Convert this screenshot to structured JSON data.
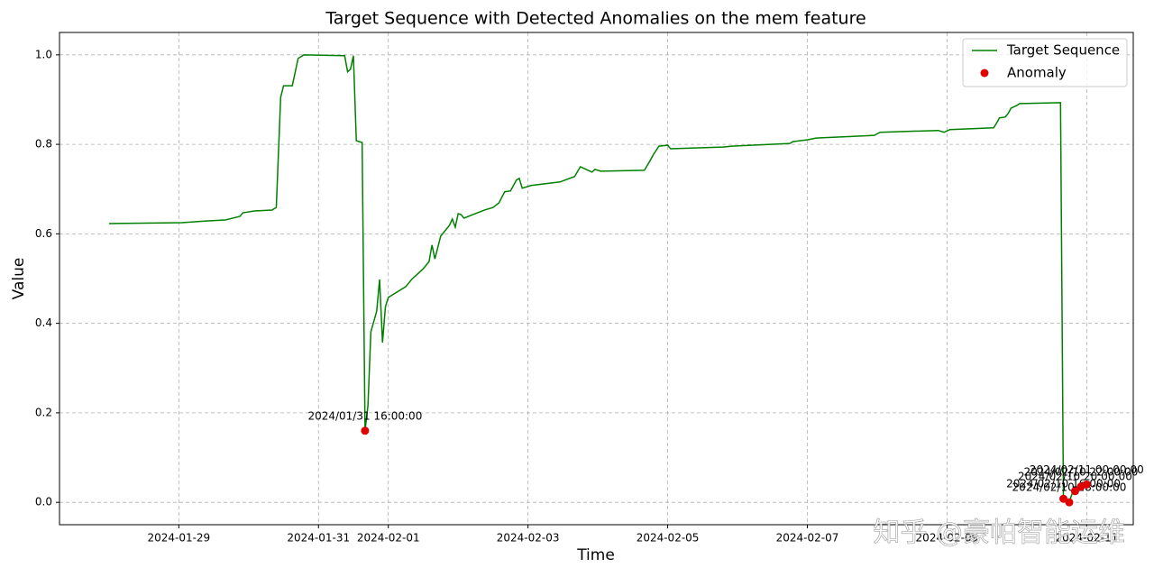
{
  "chart_data": {
    "type": "line",
    "title": "Target Sequence with Detected Anomalies on the mem feature",
    "xlabel": "Time",
    "ylabel": "Value",
    "xlim": [
      "2024-01-27 07:00",
      "2024-02-11 16:00"
    ],
    "xticks": [
      "2024-01-29",
      "2024-01-31",
      "2024-02-01",
      "2024-02-03",
      "2024-02-05",
      "2024-02-07",
      "2024-02-09",
      "2024-02-11"
    ],
    "ylim": [
      -0.05,
      1.05
    ],
    "yticks": [
      {
        "value": 0,
        "label": "0.0"
      },
      0.2,
      0.4,
      0.6,
      0.8,
      {
        "value": 1,
        "label": "1.0"
      }
    ],
    "grid": true,
    "legend": "upper right",
    "watermark": "知乎 @豪帕智能运维",
    "series": [
      {
        "name": "Target Sequence",
        "type": "line",
        "color": "#008000",
        "x": [
          "2024-01-28 00:00",
          "2024-01-29 01:00",
          "2024-01-29 10:00",
          "2024-01-29 16:00",
          "2024-01-29 21:00",
          "2024-01-29 22:00",
          "2024-01-30 02:00",
          "2024-01-30 08:00",
          "2024-01-30 09:30",
          "2024-01-30 11:00",
          "2024-01-30 12:00",
          "2024-01-30 15:00",
          "2024-01-30 17:00",
          "2024-01-30 19:00",
          "2024-01-31 09:00",
          "2024-01-31 10:00",
          "2024-01-31 11:00",
          "2024-01-31 12:00",
          "2024-01-31 13:00",
          "2024-01-31 15:00",
          "2024-01-31 16:00",
          "2024-01-31 17:00",
          "2024-01-31 18:00",
          "2024-01-31 20:00",
          "2024-01-31 21:00",
          "2024-01-31 22:00",
          "2024-01-31 23:00",
          "2024-02-01 00:00",
          "2024-02-01 06:00",
          "2024-02-01 08:00",
          "2024-02-01 12:00",
          "2024-02-01 14:00",
          "2024-02-01 15:00",
          "2024-02-01 16:00",
          "2024-02-01 18:00",
          "2024-02-01 21:00",
          "2024-02-01 22:00",
          "2024-02-01 23:00",
          "2024-02-02 00:00",
          "2024-02-02 01:00",
          "2024-02-02 02:00",
          "2024-02-02 05:00",
          "2024-02-02 09:00",
          "2024-02-02 12:00",
          "2024-02-02 14:00",
          "2024-02-02 16:00",
          "2024-02-02 18:00",
          "2024-02-02 20:00",
          "2024-02-02 21:00",
          "2024-02-02 22:00",
          "2024-02-03 01:00",
          "2024-02-03 11:00",
          "2024-02-03 16:00",
          "2024-02-03 18:00",
          "2024-02-03 20:00",
          "2024-02-03 22:00",
          "2024-02-03 23:00",
          "2024-02-04 01:00",
          "2024-02-04 16:00",
          "2024-02-04 18:00",
          "2024-02-04 19:00",
          "2024-02-04 21:00",
          "2024-02-05 00:00",
          "2024-02-05 01:00",
          "2024-02-05 19:00",
          "2024-02-05 22:00",
          "2024-02-06 18:00",
          "2024-02-06 19:00",
          "2024-02-07 00:00",
          "2024-02-07 03:00",
          "2024-02-07 20:00",
          "2024-02-07 23:00",
          "2024-02-08 01:00",
          "2024-02-08 21:00",
          "2024-02-08 23:00",
          "2024-02-09 01:00",
          "2024-02-09 16:00",
          "2024-02-09 17:00",
          "2024-02-09 18:00",
          "2024-02-09 20:00",
          "2024-02-09 21:00",
          "2024-02-09 22:00",
          "2024-02-10 00:00",
          "2024-02-10 01:00",
          "2024-02-10 15:00",
          "2024-02-10 16:00",
          "2024-02-10 17:00",
          "2024-02-10 18:00",
          "2024-02-10 19:00",
          "2024-02-10 20:00",
          "2024-02-10 21:00",
          "2024-02-10 22:00",
          "2024-02-10 23:00",
          "2024-02-11 00:00"
        ],
        "values": [
          0.623,
          0.625,
          0.629,
          0.631,
          0.639,
          0.647,
          0.651,
          0.653,
          0.659,
          0.905,
          0.931,
          0.931,
          0.992,
          1.0,
          0.998,
          0.962,
          0.968,
          0.998,
          0.808,
          0.804,
          0.16,
          0.216,
          0.381,
          0.427,
          0.498,
          0.357,
          0.437,
          0.458,
          0.482,
          0.498,
          0.522,
          0.538,
          0.575,
          0.544,
          0.595,
          0.619,
          0.633,
          0.615,
          0.645,
          0.643,
          0.635,
          0.643,
          0.653,
          0.659,
          0.669,
          0.694,
          0.696,
          0.72,
          0.724,
          0.702,
          0.708,
          0.716,
          0.728,
          0.75,
          0.744,
          0.738,
          0.744,
          0.74,
          0.742,
          0.764,
          0.776,
          0.796,
          0.798,
          0.79,
          0.794,
          0.796,
          0.802,
          0.806,
          0.81,
          0.814,
          0.819,
          0.82,
          0.827,
          0.831,
          0.827,
          0.833,
          0.837,
          0.847,
          0.859,
          0.861,
          0.869,
          0.881,
          0.887,
          0.891,
          0.893,
          0.008,
          0.004,
          0.0,
          0.02,
          0.025,
          0.03,
          0.035,
          0.037,
          0.04
        ]
      },
      {
        "name": "Anomaly",
        "type": "scatter",
        "color": "#e00000",
        "x": [
          "2024-01-31 16:00",
          "2024-02-10 16:00",
          "2024-02-10 18:00",
          "2024-02-10 20:00",
          "2024-02-10 22:00",
          "2024-02-11 00:00"
        ],
        "values": [
          0.16,
          0.008,
          0.0,
          0.025,
          0.035,
          0.04
        ],
        "labels": [
          "2024/01/31 16:00:00",
          "2024/02/10 16:00:00",
          "2024/02/10 18:00:00",
          "2024/02/10 20:00:00",
          "2024/02/10 22:00:00",
          "2024/02/11 00:00:00"
        ]
      }
    ]
  }
}
